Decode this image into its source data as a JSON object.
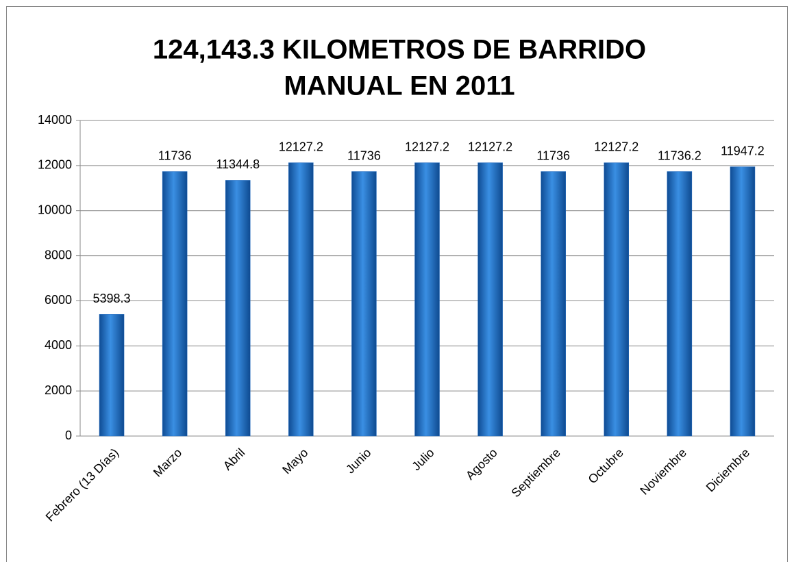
{
  "chart_data": {
    "type": "bar",
    "title": [
      "124,143.3 KILOMETROS DE BARRIDO",
      "MANUAL EN 2011"
    ],
    "categories": [
      "Febrero (13 Días)",
      "Marzo",
      "Abril",
      "Mayo",
      "Junio",
      "Julio",
      "Agosto",
      "Septiembre",
      "Octubre",
      "Noviembre",
      "Diciembre"
    ],
    "values": [
      5398.3,
      11736,
      11344.8,
      12127.2,
      11736,
      12127.2,
      12127.2,
      11736,
      12127.2,
      11736.2,
      11947.2
    ],
    "color": "#1f68bd",
    "ylim": [
      0,
      14000
    ],
    "yticks": [
      0,
      2000,
      4000,
      6000,
      8000,
      10000,
      12000,
      14000
    ],
    "grid": true
  }
}
